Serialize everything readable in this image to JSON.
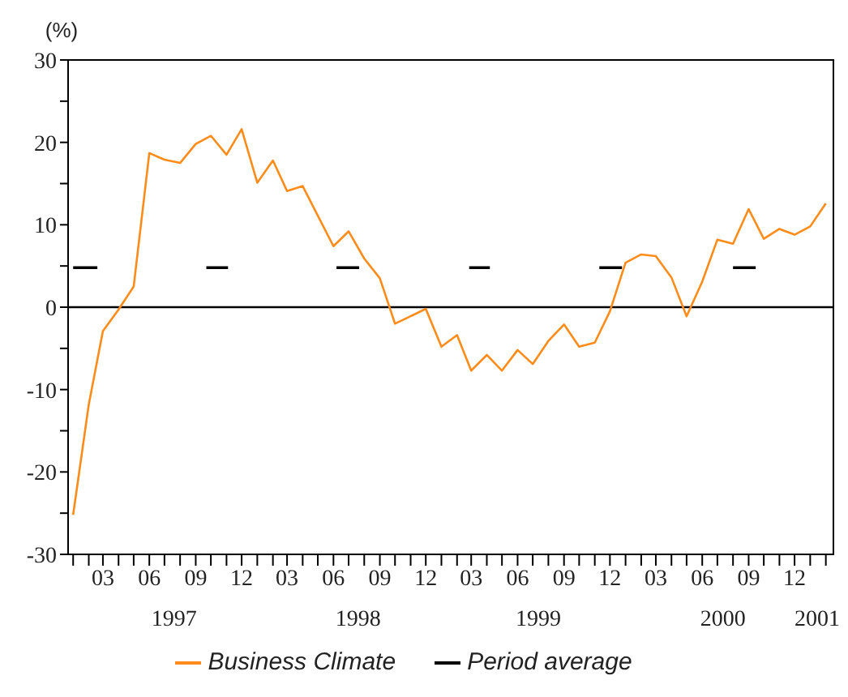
{
  "chart_data": {
    "type": "line",
    "ylabel": "(%)",
    "x": [
      "1997-01",
      "1997-02",
      "1997-03",
      "1997-04",
      "1997-05",
      "1997-06",
      "1997-07",
      "1997-08",
      "1997-09",
      "1997-10",
      "1997-11",
      "1997-12",
      "1998-01",
      "1998-02",
      "1998-03",
      "1998-04",
      "1998-05",
      "1998-06",
      "1998-07",
      "1998-08",
      "1998-09",
      "1998-10",
      "1998-11",
      "1998-12",
      "1999-01",
      "1999-02",
      "1999-03",
      "1999-04",
      "1999-05",
      "1999-06",
      "1999-07",
      "1999-08",
      "1999-09",
      "1999-10",
      "1999-11",
      "1999-12",
      "2000-01",
      "2000-02",
      "2000-03",
      "2000-04",
      "2000-05",
      "2000-06",
      "2000-07",
      "2000-08",
      "2000-09",
      "2000-10",
      "2000-11",
      "2000-12",
      "2001-01",
      "2001-02"
    ],
    "series": [
      {
        "name": "Business Climate",
        "color": "#ff8c1a",
        "values": [
          -25.2,
          -11.8,
          -2.9,
          -0.3,
          2.5,
          18.7,
          17.9,
          17.5,
          19.8,
          20.8,
          18.5,
          21.6,
          15.1,
          17.8,
          14.1,
          14.7,
          11.1,
          7.4,
          9.2,
          5.9,
          3.5,
          -2.0,
          -1.1,
          -0.2,
          -4.8,
          -3.4,
          -7.7,
          -5.8,
          -7.7,
          -5.2,
          -6.9,
          -4.1,
          -2.1,
          -4.8,
          -4.3,
          -0.5,
          5.4,
          6.4,
          6.2,
          3.6,
          -1.1,
          3.1,
          8.2,
          7.7,
          11.9,
          8.3,
          9.5,
          8.8,
          9.8,
          12.6
        ]
      },
      {
        "name": "Period average",
        "color": "#000000",
        "x": [
          "1997-01",
          "1997-02-18",
          "1997-06",
          "1997-09-22",
          "1997-11-04",
          "1998-03",
          "1998-06-07",
          "1998-07-22",
          "1998-10",
          "1999-02-25",
          "1999-04-07",
          "1999-08",
          "1999-11-10",
          "1999-12-25",
          "2000-04",
          "2000-08-01",
          "2000-09-15"
        ],
        "values": [
          4.8,
          4.8,
          null,
          4.8,
          4.8,
          null,
          4.8,
          4.8,
          null,
          4.8,
          4.8,
          null,
          4.8,
          4.8,
          null,
          4.8,
          4.8
        ]
      }
    ],
    "xlim": [
      "1996-12-22",
      "2001-02-16"
    ],
    "x2lim": [
      "1996-12-22",
      "2001-02-16"
    ],
    "xticks": [
      {
        "value": "1997-01",
        "label": null
      },
      {
        "value": "1997-02",
        "label": null
      },
      {
        "value": "1997-03",
        "label": "03"
      },
      {
        "value": "1997-04",
        "label": null
      },
      {
        "value": "1997-05",
        "label": null
      },
      {
        "value": "1997-06",
        "label": "06"
      },
      {
        "value": "1997-07",
        "label": null
      },
      {
        "value": "1997-08",
        "label": null
      },
      {
        "value": "1997-09",
        "label": "09"
      },
      {
        "value": "1997-10",
        "label": null
      },
      {
        "value": "1997-11",
        "label": null
      },
      {
        "value": "1997-12",
        "label": "12"
      },
      {
        "value": "1998-01",
        "label": null
      },
      {
        "value": "1998-02",
        "label": null
      },
      {
        "value": "1998-03",
        "label": "03"
      },
      {
        "value": "1998-04",
        "label": null
      },
      {
        "value": "1998-05",
        "label": null
      },
      {
        "value": "1998-06",
        "label": "06"
      },
      {
        "value": "1998-07",
        "label": null
      },
      {
        "value": "1998-08",
        "label": null
      },
      {
        "value": "1998-09",
        "label": "09"
      },
      {
        "value": "1998-10",
        "label": null
      },
      {
        "value": "1998-11",
        "label": null
      },
      {
        "value": "1998-12",
        "label": "12"
      },
      {
        "value": "1999-01",
        "label": null
      },
      {
        "value": "1999-02",
        "label": null
      },
      {
        "value": "1999-03",
        "label": "03"
      },
      {
        "value": "1999-04",
        "label": null
      },
      {
        "value": "1999-05",
        "label": null
      },
      {
        "value": "1999-06",
        "label": "06"
      },
      {
        "value": "1999-07",
        "label": null
      },
      {
        "value": "1999-08",
        "label": null
      },
      {
        "value": "1999-09",
        "label": "09"
      },
      {
        "value": "1999-10",
        "label": null
      },
      {
        "value": "1999-11",
        "label": null
      },
      {
        "value": "1999-12",
        "label": "12"
      },
      {
        "value": "2000-01",
        "label": null
      },
      {
        "value": "2000-02",
        "label": null
      },
      {
        "value": "2000-03",
        "label": "03"
      },
      {
        "value": "2000-04",
        "label": null
      },
      {
        "value": "2000-05",
        "label": null
      },
      {
        "value": "2000-06",
        "label": "06"
      },
      {
        "value": "2000-07",
        "label": null
      },
      {
        "value": "2000-08",
        "label": null
      },
      {
        "value": "2000-09",
        "label": "09"
      },
      {
        "value": "2000-10",
        "label": null
      },
      {
        "value": "2000-11",
        "label": null
      },
      {
        "value": "2000-12",
        "label": "12"
      },
      {
        "value": "2001-01",
        "label": null
      },
      {
        "value": "2001-02",
        "label": null
      }
    ],
    "x2ticks": [
      {
        "value": "1997-07-20",
        "label": "1997"
      },
      {
        "value": "1998-07-20",
        "label": "1998"
      },
      {
        "value": "1999-07-12",
        "label": "1999"
      },
      {
        "value": "2000-07-12",
        "label": "2000"
      },
      {
        "value": "2001-01-15",
        "label": "2001"
      }
    ],
    "ylim": [
      -30,
      30
    ],
    "yticks": [
      -30,
      {
        "value": -25,
        "label": null
      },
      -20,
      {
        "value": -15,
        "label": null
      },
      -10,
      {
        "value": -5,
        "label": null
      },
      0,
      {
        "value": 5,
        "label": null
      },
      10,
      {
        "value": 15,
        "label": null
      },
      20,
      {
        "value": 25,
        "label": null
      },
      30
    ],
    "ref_lines": [
      {
        "axis": "y",
        "value": 0,
        "color": "#000000"
      }
    ],
    "legend": "bottom",
    "marker": "none",
    "line_style": "solid",
    "grid": false
  }
}
